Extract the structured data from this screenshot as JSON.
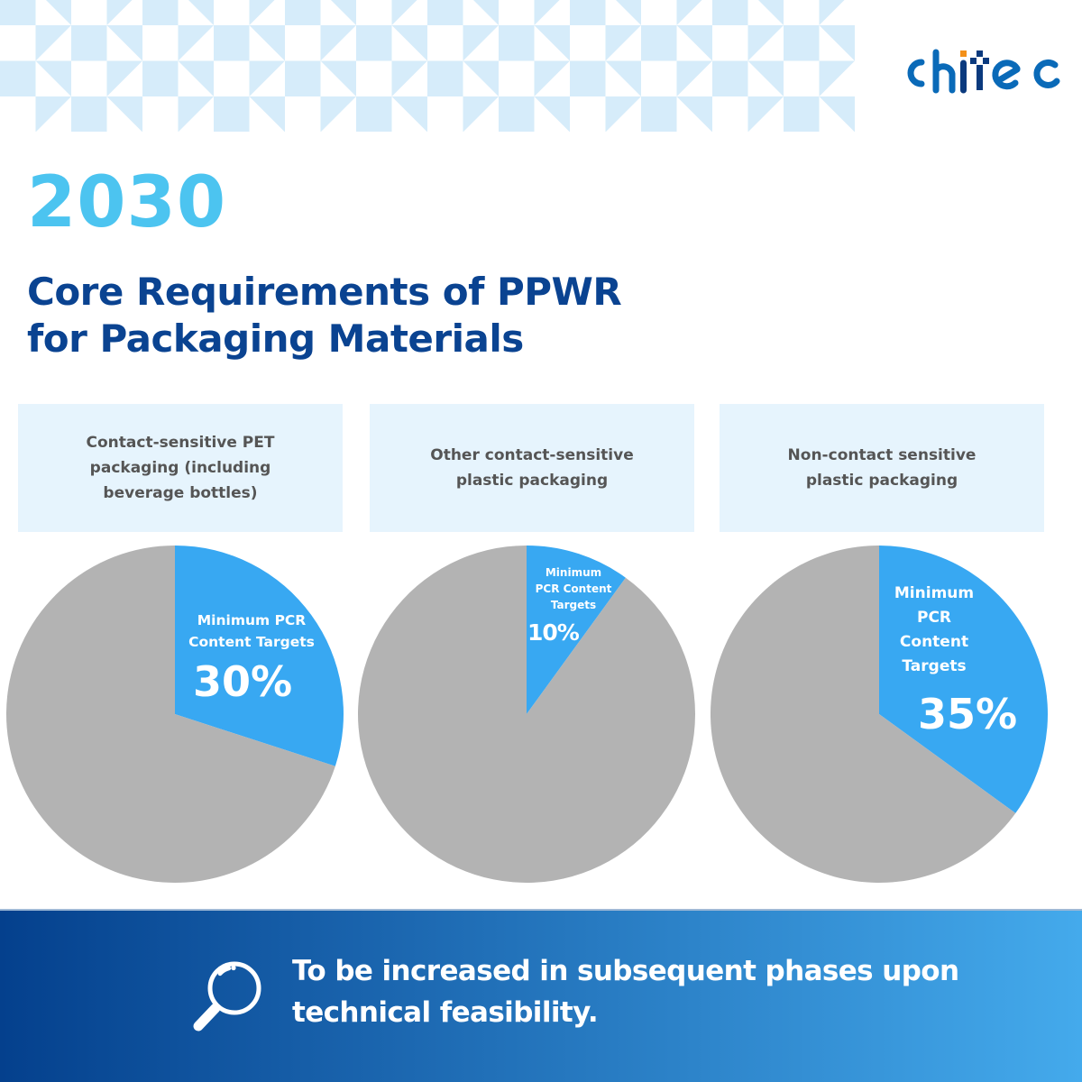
{
  "brand": {
    "logo_text": "chitec",
    "logo_color": "#0a6ab8",
    "logo_dark_color": "#0b3a7e",
    "logo_accent_color": "#f39019"
  },
  "header": {
    "year": "2030",
    "title_line1": "Core Requirements of PPWR",
    "title_line2": "for Packaging Materials"
  },
  "colors": {
    "year": "#4cc4f0",
    "title": "#0a4391",
    "pattern": "#d6ecfa",
    "category_bg": "#e6f4fd",
    "category_text": "#555555",
    "pie_highlight": "#38a8f2",
    "pie_rest": "#b3b3b3",
    "footer_gradient_start": "#04408d",
    "footer_gradient_end": "#44aaec"
  },
  "categories": [
    {
      "label": "Contact-sensitive PET packaging (including beverage bottles)",
      "pie_label": "Minimum PCR Content Targets",
      "value_text": "30%"
    },
    {
      "label": "Other contact-sensitive plastic packaging",
      "pie_label": "Minimum PCR Content Targets",
      "value_text": "10%"
    },
    {
      "label": "Non-contact sensitive plastic packaging",
      "pie_label": "Minimum PCR Content Targets",
      "value_text": "35%"
    }
  ],
  "footer": {
    "icon": "magnifying-glass-icon",
    "text": "To be increased in subsequent phases upon technical feasibility."
  },
  "chart_data": [
    {
      "type": "pie",
      "title": "Contact-sensitive PET packaging (including beverage bottles)",
      "categories": [
        "Minimum PCR Content Targets",
        "Remainder"
      ],
      "values": [
        30,
        70
      ],
      "annotations": [
        "Minimum PCR Content Targets",
        "30%"
      ],
      "colors": [
        "#38a8f2",
        "#b3b3b3"
      ],
      "legend": "none"
    },
    {
      "type": "pie",
      "title": "Other contact-sensitive plastic packaging",
      "categories": [
        "Minimum PCR Content Targets",
        "Remainder"
      ],
      "values": [
        10,
        90
      ],
      "annotations": [
        "Minimum PCR Content Targets",
        "10%"
      ],
      "colors": [
        "#38a8f2",
        "#b3b3b3"
      ],
      "legend": "none"
    },
    {
      "type": "pie",
      "title": "Non-contact sensitive plastic packaging",
      "categories": [
        "Minimum PCR Content Targets",
        "Remainder"
      ],
      "values": [
        35,
        65
      ],
      "annotations": [
        "Minimum PCR Content Targets",
        "35%"
      ],
      "colors": [
        "#38a8f2",
        "#b3b3b3"
      ],
      "legend": "none"
    }
  ]
}
